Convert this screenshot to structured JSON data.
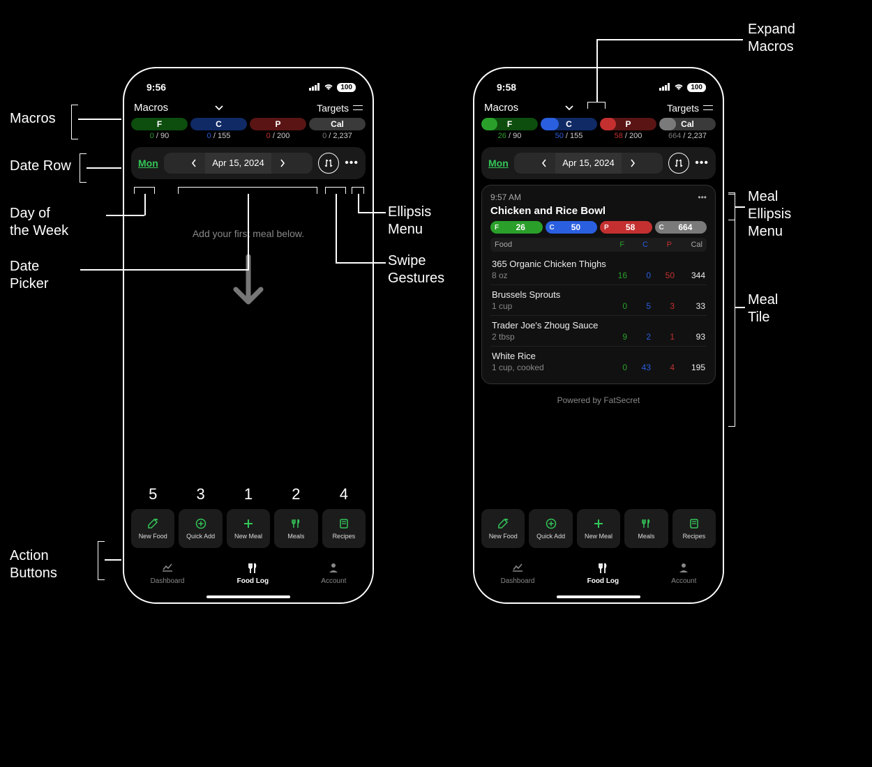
{
  "colors": {
    "fat_bright": "#2aa02a",
    "fat_dark": "#0d4d0d",
    "carb_bright": "#2a5fe0",
    "carb_dark": "#102a66",
    "protein_bright": "#c43030",
    "protein_dark": "#5a1414",
    "cal_bright": "#7a7a7a",
    "cal_dark": "#3a3a3a",
    "accent_green": "#34c759",
    "text_muted": "#888888"
  },
  "annotations": {
    "macros": "Macros",
    "date_row": "Date Row",
    "day_of_week": "Day of\nthe Week",
    "date_picker": "Date\nPicker",
    "action_buttons": "Action\nButtons",
    "ellipsis_menu": "Ellipsis\nMenu",
    "swipe_gestures": "Swipe\nGestures",
    "expand_macros": "Expand\nMacros",
    "meal_ellipsis": "Meal\nEllipsis\nMenu",
    "meal_tile": "Meal\nTile"
  },
  "left_phone": {
    "time": "9:56",
    "battery": "100",
    "header": {
      "macros_label": "Macros",
      "targets_label": "Targets"
    },
    "macros": [
      {
        "letter": "F",
        "current": 0,
        "target": 90,
        "pct": 0,
        "color_bright": "#2aa02a",
        "color_dark": "#0d4d0d"
      },
      {
        "letter": "C",
        "current": 0,
        "target": 155,
        "pct": 0,
        "color_bright": "#2a5fe0",
        "color_dark": "#102a66"
      },
      {
        "letter": "P",
        "current": 0,
        "target": 200,
        "pct": 0,
        "color_bright": "#c43030",
        "color_dark": "#5a1414"
      },
      {
        "letter": "Cal",
        "current": 0,
        "target": 2237,
        "pct": 0,
        "color_bright": "#7a7a7a",
        "color_dark": "#3a3a3a",
        "target_fmt": "2,237"
      }
    ],
    "date_row": {
      "day": "Mon",
      "date": "Apr 15, 2024"
    },
    "empty_text": "Add your first meal below.",
    "action_order": [
      "5",
      "3",
      "1",
      "2",
      "4"
    ],
    "actions": [
      {
        "id": "new-food",
        "label": "New Food",
        "icon": "carrot"
      },
      {
        "id": "quick-add",
        "label": "Quick Add",
        "icon": "plus-circle"
      },
      {
        "id": "new-meal",
        "label": "New Meal",
        "icon": "plus"
      },
      {
        "id": "meals",
        "label": "Meals",
        "icon": "utensils"
      },
      {
        "id": "recipes",
        "label": "Recipes",
        "icon": "book"
      }
    ],
    "tabs": [
      {
        "id": "dashboard",
        "label": "Dashboard",
        "icon": "chart"
      },
      {
        "id": "food-log",
        "label": "Food Log",
        "icon": "utensils",
        "active": true
      },
      {
        "id": "account",
        "label": "Account",
        "icon": "person"
      }
    ]
  },
  "right_phone": {
    "time": "9:58",
    "battery": "100",
    "header": {
      "macros_label": "Macros",
      "targets_label": "Targets"
    },
    "macros": [
      {
        "letter": "F",
        "current": 26,
        "target": 90,
        "pct": 29,
        "color_bright": "#2aa02a",
        "color_dark": "#0d4d0d"
      },
      {
        "letter": "C",
        "current": 50,
        "target": 155,
        "pct": 32,
        "color_bright": "#2a5fe0",
        "color_dark": "#102a66"
      },
      {
        "letter": "P",
        "current": 58,
        "target": 200,
        "pct": 29,
        "color_bright": "#c43030",
        "color_dark": "#5a1414"
      },
      {
        "letter": "Cal",
        "current": 664,
        "target": 2237,
        "pct": 30,
        "color_bright": "#7a7a7a",
        "color_dark": "#3a3a3a",
        "target_fmt": "2,237"
      }
    ],
    "date_row": {
      "day": "Mon",
      "date": "Apr 15, 2024"
    },
    "meal": {
      "time": "9:57 AM",
      "title": "Chicken and Rice Bowl",
      "pills": [
        {
          "k": "F",
          "v": 26,
          "color": "#2aa02a"
        },
        {
          "k": "C",
          "v": 50,
          "color": "#2a5fe0"
        },
        {
          "k": "P",
          "v": 58,
          "color": "#c43030"
        },
        {
          "k": "C",
          "v": 664,
          "color": "#7a7a7a"
        }
      ],
      "columns": {
        "food": "Food",
        "f": "F",
        "c": "C",
        "p": "P",
        "cal": "Cal"
      },
      "foods": [
        {
          "name": "365 Organic Chicken Thighs",
          "qty": "8 oz",
          "f": 16,
          "c": 0,
          "p": 50,
          "cal": 344
        },
        {
          "name": "Brussels Sprouts",
          "qty": "1 cup",
          "f": 0,
          "c": 5,
          "p": 3,
          "cal": 33
        },
        {
          "name": "Trader Joe's Zhoug Sauce",
          "qty": "2 tbsp",
          "f": 9,
          "c": 2,
          "p": 1,
          "cal": 93
        },
        {
          "name": "White Rice",
          "qty": "1 cup, cooked",
          "f": 0,
          "c": 43,
          "p": 4,
          "cal": 195
        }
      ]
    },
    "powered_by": "Powered by FatSecret",
    "actions_same_as_left": true,
    "tabs_same_as_left": true
  }
}
